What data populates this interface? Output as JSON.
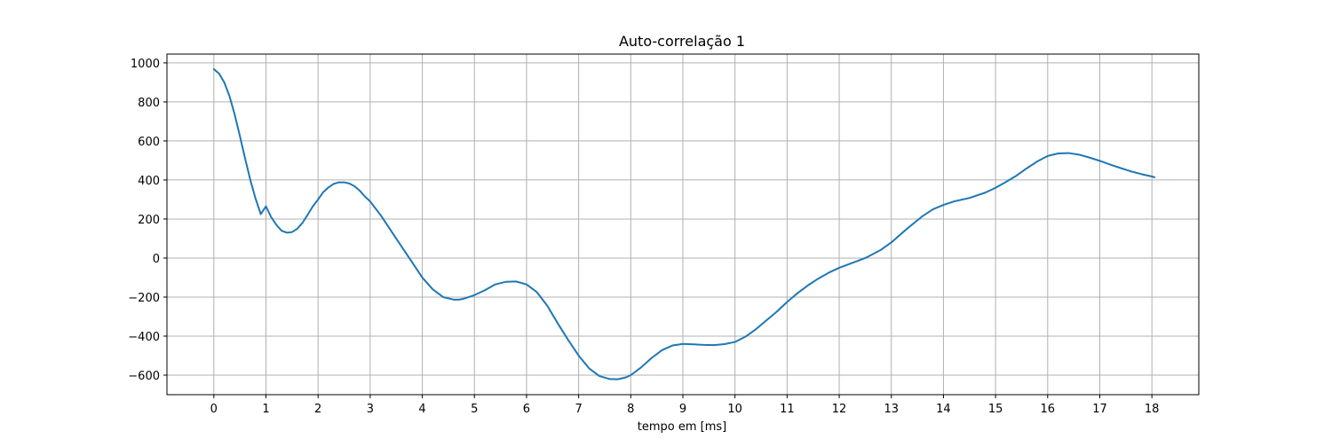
{
  "chart_data": {
    "type": "line",
    "title": "Auto-correlação 1",
    "xlabel": "tempo em [ms]",
    "ylabel": "",
    "xlim": [
      -0.9,
      18.9
    ],
    "ylim": [
      -700,
      1045
    ],
    "xticks": [
      0,
      1,
      2,
      3,
      4,
      5,
      6,
      7,
      8,
      9,
      10,
      11,
      12,
      13,
      14,
      15,
      16,
      17,
      18
    ],
    "xtick_labels": [
      "0",
      "1",
      "2",
      "3",
      "4",
      "5",
      "6",
      "7",
      "8",
      "9",
      "10",
      "11",
      "12",
      "13",
      "14",
      "15",
      "16",
      "17",
      "18"
    ],
    "yticks": [
      -600,
      -400,
      -200,
      0,
      200,
      400,
      600,
      800,
      1000
    ],
    "ytick_labels": [
      "−600",
      "−400",
      "−200",
      "0",
      "200",
      "400",
      "600",
      "800",
      "1000"
    ],
    "grid": true,
    "series_color": "#1f77b4",
    "series": [
      {
        "x": [
          0,
          0.1,
          0.2,
          0.3,
          0.4,
          0.5,
          0.6,
          0.7,
          0.8,
          0.9,
          1.0,
          1.1,
          1.2,
          1.3,
          1.4,
          1.5,
          1.6,
          1.7,
          1.8,
          1.9,
          2.0,
          2.1,
          2.2,
          2.3,
          2.4,
          2.5,
          2.6,
          2.7,
          2.8,
          2.9,
          3.0,
          3.2,
          3.4,
          3.6,
          3.8,
          4.0,
          4.2,
          4.4,
          4.6,
          4.7,
          4.8,
          5.0,
          5.2,
          5.4,
          5.6,
          5.8,
          6.0,
          6.2,
          6.4,
          6.6,
          6.8,
          7.0,
          7.2,
          7.4,
          7.6,
          7.75,
          7.9,
          8.0,
          8.2,
          8.4,
          8.6,
          8.8,
          9.0,
          9.2,
          9.4,
          9.6,
          9.8,
          10.0,
          10.2,
          10.4,
          10.6,
          10.8,
          11.0,
          11.2,
          11.4,
          11.6,
          11.8,
          12.0,
          12.2,
          12.5,
          12.8,
          13.0,
          13.3,
          13.6,
          13.8,
          14.0,
          14.2,
          14.5,
          14.8,
          15.0,
          15.2,
          15.4,
          15.6,
          15.8,
          16.0,
          16.2,
          16.4,
          16.6,
          16.8,
          17.0,
          17.2,
          17.4,
          17.6,
          17.8,
          18.0,
          18.05
        ],
        "y": [
          968,
          945,
          900,
          830,
          735,
          625,
          510,
          400,
          305,
          225,
          265,
          210,
          170,
          140,
          130,
          133,
          150,
          180,
          222,
          265,
          300,
          338,
          362,
          380,
          388,
          388,
          382,
          368,
          345,
          315,
          290,
          220,
          140,
          60,
          -20,
          -100,
          -160,
          -200,
          -213,
          -213,
          -208,
          -190,
          -165,
          -135,
          -122,
          -120,
          -135,
          -175,
          -245,
          -335,
          -420,
          -500,
          -565,
          -605,
          -620,
          -621,
          -612,
          -600,
          -560,
          -512,
          -472,
          -448,
          -440,
          -442,
          -445,
          -446,
          -441,
          -430,
          -403,
          -365,
          -320,
          -275,
          -225,
          -180,
          -140,
          -105,
          -75,
          -50,
          -30,
          0,
          42,
          80,
          150,
          215,
          250,
          272,
          290,
          308,
          335,
          360,
          390,
          422,
          460,
          495,
          523,
          536,
          538,
          530,
          515,
          498,
          479,
          461,
          444,
          430,
          418,
          414
        ]
      }
    ]
  }
}
